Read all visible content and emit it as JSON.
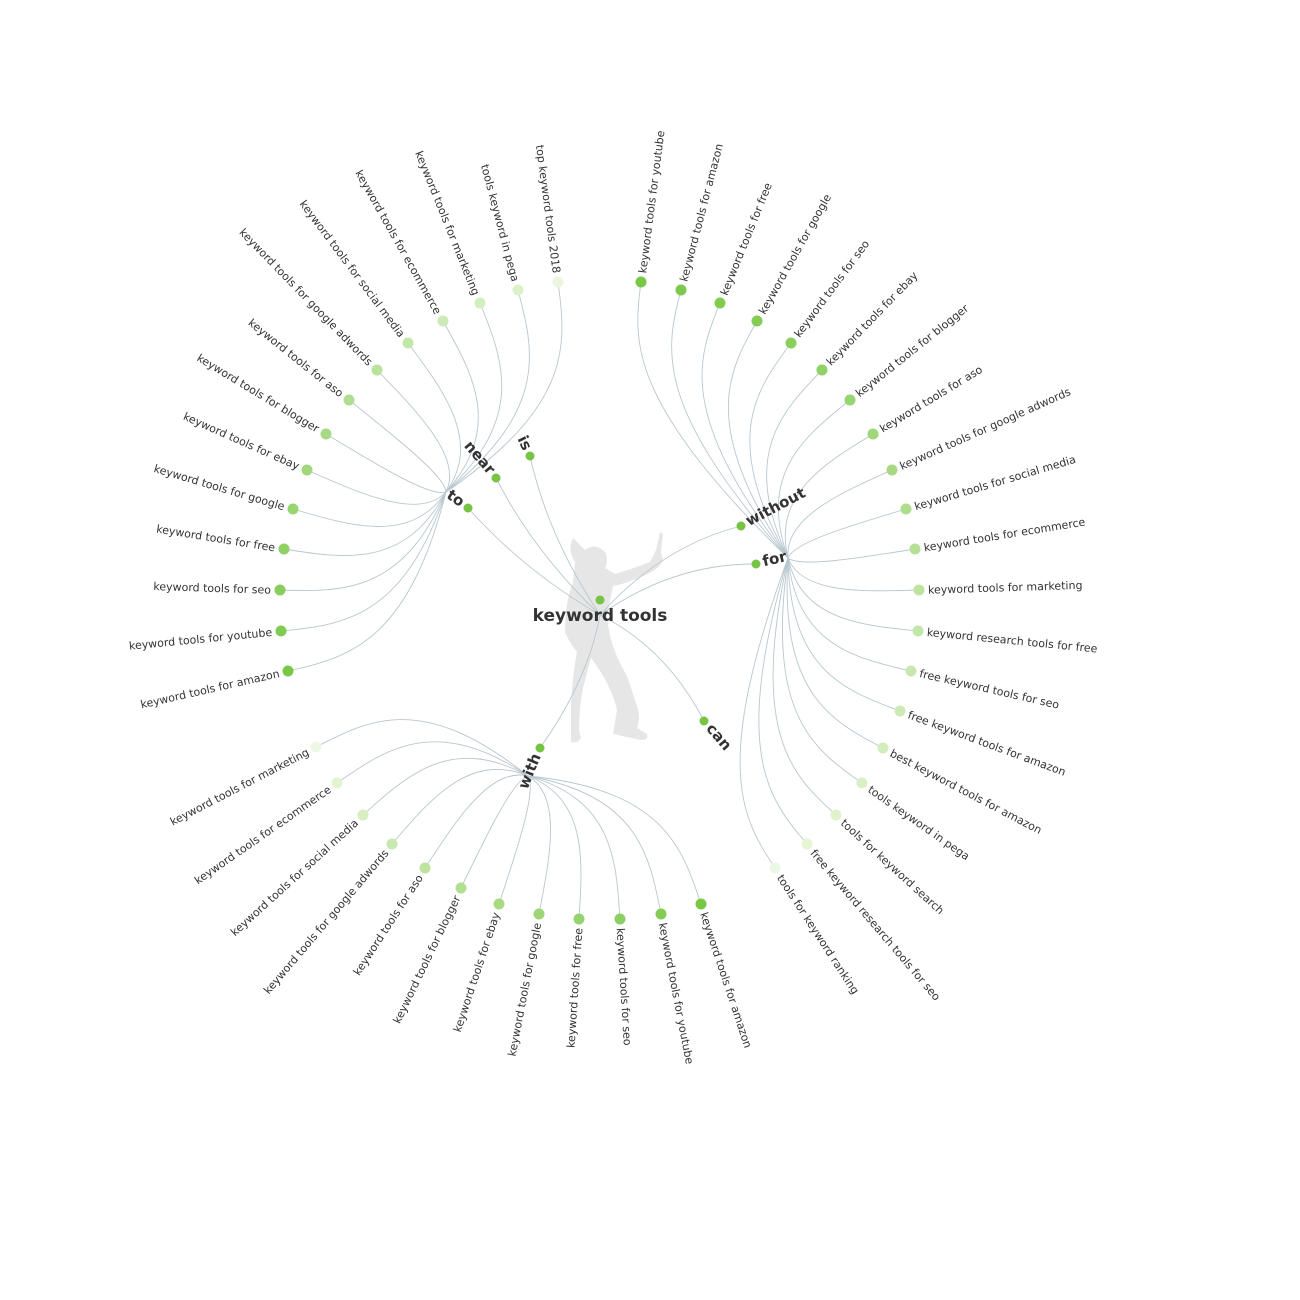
{
  "center": {
    "label": "keyword tools",
    "color": "#76c442"
  },
  "link_color": "#b8c7cf",
  "hubs": [
    {
      "label": "to",
      "color": "#76c442",
      "leaves": [
        {
          "text": "top keyword tools 2018",
          "color": "#eaf7df"
        },
        {
          "text": "tools keyword in pega",
          "color": "#dcf1c9"
        },
        {
          "text": "keyword tools for marketing",
          "color": "#d4eec0"
        },
        {
          "text": "keyword tools for ecommerce",
          "color": "#cdeab6"
        },
        {
          "text": "keyword tools for social media",
          "color": "#c3e6a9"
        },
        {
          "text": "keyword tools for google adwords",
          "color": "#b9e29c"
        },
        {
          "text": "keyword tools for aso",
          "color": "#b0de90"
        },
        {
          "text": "keyword tools for blogger",
          "color": "#a8da85"
        },
        {
          "text": "keyword tools for ebay",
          "color": "#a1d87c"
        },
        {
          "text": "keyword tools for google",
          "color": "#99d571"
        },
        {
          "text": "keyword tools for free",
          "color": "#8fd164"
        },
        {
          "text": "keyword tools for seo",
          "color": "#87ce5a"
        },
        {
          "text": "keyword tools for youtube",
          "color": "#80cb50"
        },
        {
          "text": "keyword tools for amazon",
          "color": "#78c846"
        }
      ]
    },
    {
      "label": "near",
      "color": "#76c442",
      "leaves": []
    },
    {
      "label": "is",
      "color": "#76c442",
      "leaves": []
    },
    {
      "label": "without",
      "color": "#76c442",
      "leaves": []
    },
    {
      "label": "for",
      "color": "#76c442",
      "leaves": [
        {
          "text": "keyword tools for youtube",
          "color": "#78c846"
        },
        {
          "text": "keyword tools for amazon",
          "color": "#7cc94b"
        },
        {
          "text": "keyword tools for free",
          "color": "#80cb50"
        },
        {
          "text": "keyword tools for google",
          "color": "#84cc55"
        },
        {
          "text": "keyword tools for seo",
          "color": "#8acf5d"
        },
        {
          "text": "keyword tools for ebay",
          "color": "#91d266"
        },
        {
          "text": "keyword tools for blogger",
          "color": "#98d46f"
        },
        {
          "text": "keyword tools for aso",
          "color": "#9fd779"
        },
        {
          "text": "keyword tools for google adwords",
          "color": "#a6d981"
        },
        {
          "text": "keyword tools for social media",
          "color": "#aedd8c"
        },
        {
          "text": "keyword tools for ecommerce",
          "color": "#b5e096"
        },
        {
          "text": "keyword tools for marketing",
          "color": "#bde39f"
        },
        {
          "text": "keyword research tools for free",
          "color": "#c3e6a9"
        },
        {
          "text": "free keyword tools for seo",
          "color": "#c8e8b0"
        },
        {
          "text": "free keyword tools for amazon",
          "color": "#cdeab6"
        },
        {
          "text": "best keyword tools for amazon",
          "color": "#d3edbd"
        },
        {
          "text": "tools keyword in pega",
          "color": "#d9f0c5"
        },
        {
          "text": "tools for keyword search",
          "color": "#dff2cc"
        },
        {
          "text": "free keyword research tools for seo",
          "color": "#e5f5d6"
        },
        {
          "text": "tools for keyword ranking",
          "color": "#edf8e4"
        }
      ]
    },
    {
      "label": "can",
      "color": "#76c442",
      "leaves": []
    },
    {
      "label": "with",
      "color": "#76c442",
      "leaves": [
        {
          "text": "keyword tools for marketing",
          "color": "#eef8e6"
        },
        {
          "text": "keyword tools for ecommerce",
          "color": "#e3f4d3"
        },
        {
          "text": "keyword tools for social media",
          "color": "#d6eec2"
        },
        {
          "text": "keyword tools for google adwords",
          "color": "#c8e8b0"
        },
        {
          "text": "keyword tools for aso",
          "color": "#bde39f"
        },
        {
          "text": "keyword tools for blogger",
          "color": "#b3df93"
        },
        {
          "text": "keyword tools for ebay",
          "color": "#a7da83"
        },
        {
          "text": "keyword tools for google",
          "color": "#9ed677"
        },
        {
          "text": "keyword tools for free",
          "color": "#95d36c"
        },
        {
          "text": "keyword tools for seo",
          "color": "#8dd062"
        },
        {
          "text": "keyword tools for youtube",
          "color": "#84cc55"
        },
        {
          "text": "keyword tools for amazon",
          "color": "#78c846"
        }
      ]
    }
  ]
}
